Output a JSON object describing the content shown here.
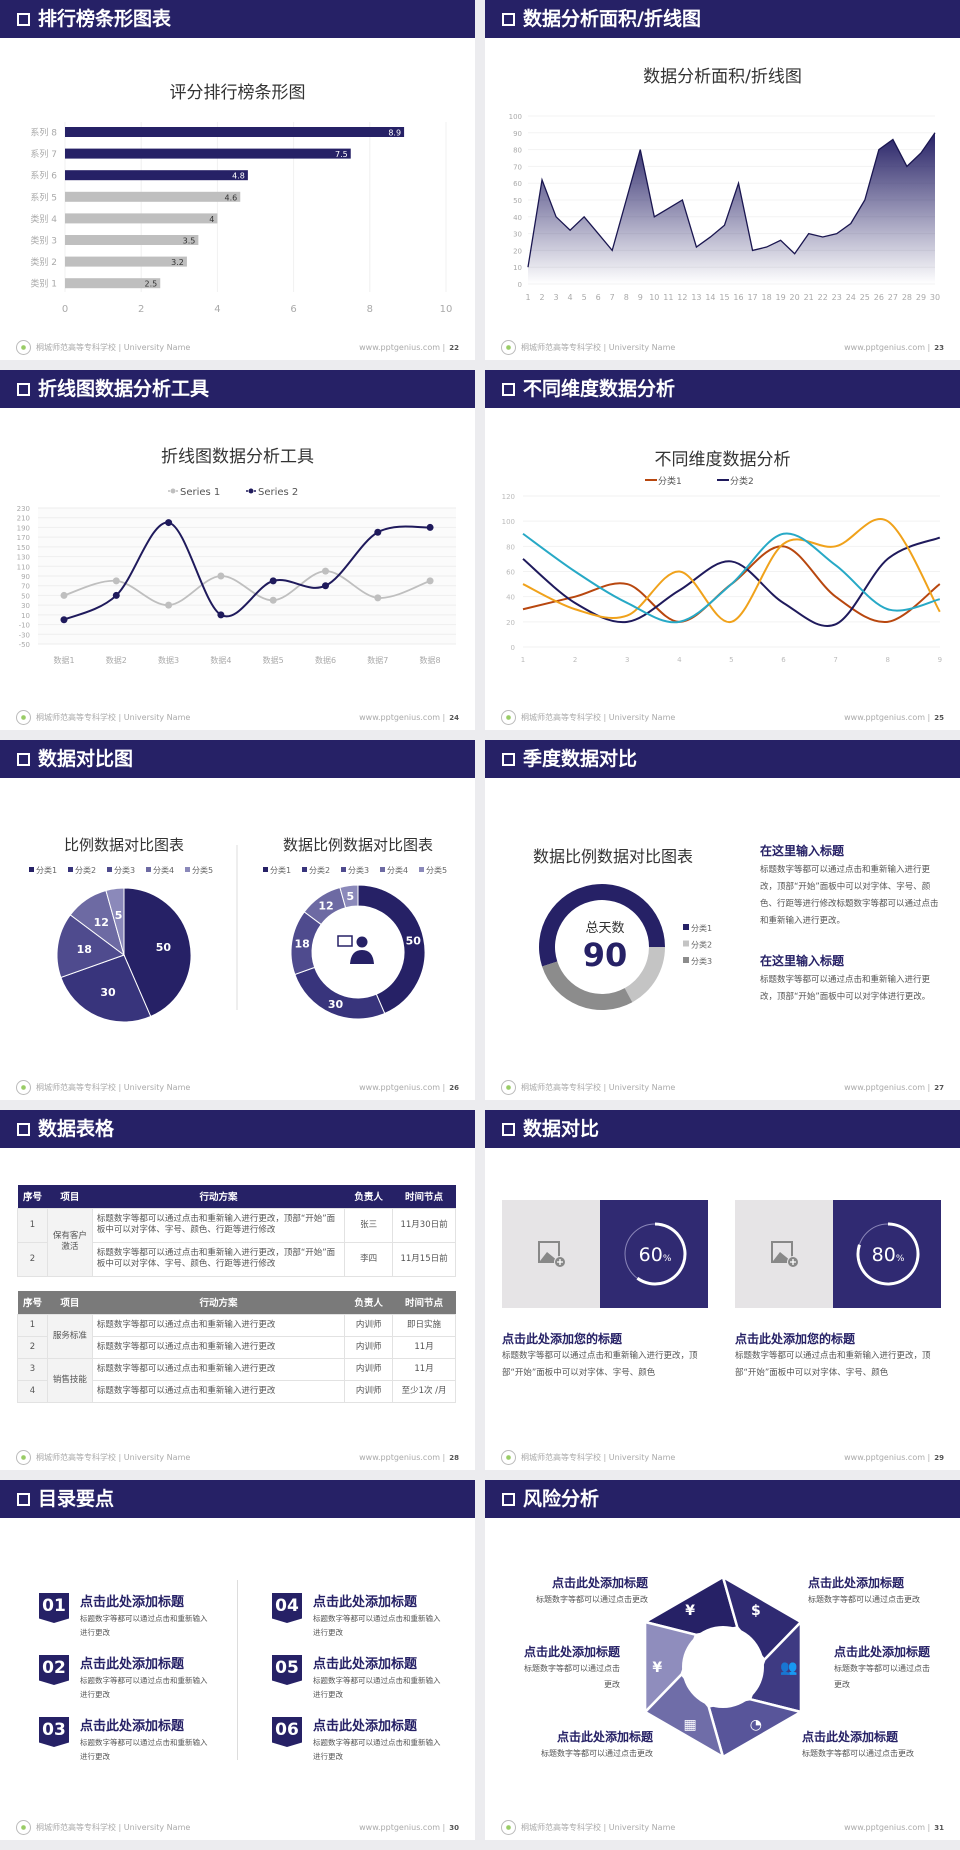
{
  "footer": {
    "school": "桐城师范高等专科学校 | University Name",
    "site": "www.pptgenius.com  |"
  },
  "colors": {
    "navy": "#262166",
    "gray": "#bfbfbf",
    "orange_red": "#b8470f",
    "orange": "#f0a21b",
    "teal": "#27a9c6"
  },
  "s1": {
    "header": "排行榜条形图表",
    "page": "22",
    "chart_data": {
      "type": "bar",
      "orientation": "horizontal",
      "title": "评分排行榜条形图",
      "categories": [
        "系列 8",
        "系列 7",
        "系列 6",
        "系列 5",
        "类别 4",
        "类别 3",
        "类别 2",
        "类别 1"
      ],
      "values": [
        8.9,
        7.5,
        4.8,
        4.6,
        4,
        3.5,
        3.2,
        2.5
      ],
      "highlight": [
        true,
        true,
        true,
        false,
        false,
        false,
        false,
        false
      ],
      "xlim": [
        0,
        10
      ],
      "xticks": [
        0,
        2,
        4,
        6,
        8,
        10
      ]
    }
  },
  "s2": {
    "header": "数据分析面积/折线图",
    "page": "23",
    "chart_data": {
      "type": "area",
      "title": "数据分析面积/折线图",
      "x": [
        1,
        2,
        3,
        4,
        5,
        6,
        7,
        8,
        9,
        10,
        11,
        12,
        13,
        14,
        15,
        16,
        17,
        18,
        19,
        20,
        21,
        22,
        23,
        24,
        25,
        26,
        27,
        28,
        29,
        30
      ],
      "values": [
        10,
        62,
        40,
        32,
        40,
        30,
        20,
        50,
        80,
        40,
        45,
        50,
        22,
        28,
        35,
        60,
        20,
        22,
        26,
        18,
        30,
        28,
        30,
        36,
        50,
        80,
        86,
        70,
        78,
        90
      ],
      "ylim": [
        0,
        100
      ],
      "yticks": [
        0,
        10,
        20,
        30,
        40,
        50,
        60,
        70,
        80,
        90,
        100
      ]
    }
  },
  "s3": {
    "header": "折线图数据分析工具",
    "page": "24",
    "chart_data": {
      "type": "line",
      "smooth": true,
      "title": "折线图数据分析工具",
      "categories": [
        "数据1",
        "数据2",
        "数据3",
        "数据4",
        "数据5",
        "数据6",
        "数据7",
        "数据8"
      ],
      "series": [
        {
          "name": "Series 1",
          "color": "#bfbfbf",
          "values": [
            50,
            80,
            30,
            90,
            40,
            100,
            45,
            80
          ]
        },
        {
          "name": "Series 2",
          "color": "#1f1a5c",
          "values": [
            0,
            50,
            200,
            10,
            80,
            70,
            180,
            190
          ]
        }
      ],
      "ylim": [
        -50,
        230
      ],
      "yticks": [
        -50,
        -30,
        -10,
        10,
        30,
        50,
        70,
        90,
        110,
        130,
        150,
        170,
        190,
        210,
        230
      ],
      "legend": "top"
    }
  },
  "s4": {
    "header": "不同维度数据分析",
    "page": "25",
    "chart_data": {
      "type": "line",
      "smooth": true,
      "title": "不同维度数据分析",
      "x": [
        1,
        2,
        3,
        4,
        5,
        6,
        7,
        8,
        9
      ],
      "series": [
        {
          "name": "分类1",
          "color": "#b8470f",
          "values": [
            30,
            40,
            50,
            20,
            50,
            80,
            40,
            20,
            50
          ]
        },
        {
          "name": "分类2",
          "color": "#1f1a5c",
          "values": [
            70,
            35,
            20,
            45,
            68,
            35,
            18,
            70,
            87
          ]
        },
        {
          "color": "#f0a21b",
          "values": [
            50,
            30,
            25,
            60,
            20,
            82,
            80,
            100,
            28
          ]
        },
        {
          "color": "#27a9c6",
          "values": [
            90,
            60,
            35,
            20,
            50,
            90,
            65,
            30,
            38
          ]
        }
      ],
      "ylim": [
        0,
        120
      ],
      "yticks": [
        0,
        20,
        40,
        60,
        80,
        100,
        120
      ],
      "legend": "top"
    }
  },
  "s5": {
    "header": "数据对比图",
    "page": "26",
    "chart_data": [
      {
        "type": "pie",
        "title": "比例数据对比图表",
        "categories": [
          "分类1",
          "分类2",
          "分类3",
          "分类4",
          "分类5"
        ],
        "values": [
          50,
          30,
          18,
          12,
          5
        ]
      },
      {
        "type": "donut",
        "title": "数据比例数据对比图表",
        "categories": [
          "分类1",
          "分类2",
          "分类3",
          "分类4",
          "分类5"
        ],
        "values": [
          50,
          30,
          18,
          12,
          5
        ],
        "center_icon": "presenter-icon"
      }
    ],
    "slice_colors": [
      "#262166",
      "#38347c",
      "#4f4b8e",
      "#6d6aa3",
      "#8b89ba"
    ]
  },
  "s6": {
    "header": "季度数据对比",
    "page": "27",
    "chart_data": {
      "type": "donut",
      "title": "数据比例数据对比图表",
      "categories": [
        "分类1",
        "分类2",
        "分类3"
      ],
      "values": [
        55,
        17,
        28
      ],
      "colors": [
        "#262166",
        "#c4c4c4",
        "#8c8c8c"
      ],
      "center_label": "总天数",
      "center_value": "90"
    },
    "items": [
      {
        "title": "在这里输入标题",
        "text": "标题数字等都可以通过点击和重新输入进行更改，顶部“开始”面板中可以对字体、字号、颜色、行距等进行修改标题数字等都可以通过点击和重新输入进行更改。"
      },
      {
        "title": "在这里输入标题",
        "text": "标题数字等都可以通过点击和重新输入进行更改，顶部“开始”面板中可以对字体进行更改。"
      }
    ]
  },
  "s7": {
    "header": "数据表格",
    "page": "28",
    "columns": [
      "序号",
      "项目",
      "行动方案",
      "负责人",
      "时间节点"
    ],
    "table1": {
      "group": "保有客户激活",
      "rows": [
        [
          "1",
          "标题数字等都可以通过点击和重新输入进行更改，顶部“开始”面板中可以对字体、字号、颜色、行距等进行修改",
          "张三",
          "11月30日前"
        ],
        [
          "2",
          "标题数字等都可以通过点击和重新输入进行更改，顶部“开始”面板中可以对字体、字号、颜色、行距等进行修改",
          "李四",
          "11月15日前"
        ]
      ]
    },
    "table2": {
      "groups": [
        "服务标准",
        "销售技能"
      ],
      "rows": [
        [
          "1",
          "标题数字等都可以通过点击和重新输入进行更改",
          "内训师",
          "即日实施"
        ],
        [
          "2",
          "标题数字等都可以通过点击和重新输入进行更改",
          "内训师",
          "11月"
        ],
        [
          "3",
          "标题数字等都可以通过点击和重新输入进行更改",
          "内训师",
          "11月"
        ],
        [
          "4",
          "标题数字等都可以通过点击和重新输入进行更改",
          "内训师",
          "至少1次 /月"
        ]
      ]
    }
  },
  "s8": {
    "header": "数据对比",
    "page": "29",
    "cards": [
      {
        "value": 60,
        "pct": "%",
        "title": "点击此处添加您的标题",
        "text": "标题数字等都可以通过点击和重新输入进行更改，顶部“开始”面板中可以对字体、字号、颜色",
        "icon": "add-image-icon"
      },
      {
        "value": 80,
        "pct": "%",
        "title": "点击此处添加您的标题",
        "text": "标题数字等都可以通过点击和重新输入进行更改，顶部“开始”面板中可以对字体、字号、颜色",
        "icon": "add-image-icon"
      }
    ]
  },
  "s9": {
    "header": "目录要点",
    "page": "30",
    "items": [
      {
        "num": "01",
        "title": "点击此处添加标题",
        "text": "标题数字等都可以通过点击和重新输入进行更改"
      },
      {
        "num": "02",
        "title": "点击此处添加标题",
        "text": "标题数字等都可以通过点击和重新输入进行更改"
      },
      {
        "num": "03",
        "title": "点击此处添加标题",
        "text": "标题数字等都可以通过点击和重新输入进行更改"
      },
      {
        "num": "04",
        "title": "点击此处添加标题",
        "text": "标题数字等都可以通过点击和重新输入进行更改"
      },
      {
        "num": "05",
        "title": "点击此处添加标题",
        "text": "标题数字等都可以通过点击和重新输入进行更改"
      },
      {
        "num": "06",
        "title": "点击此处添加标题",
        "text": "标题数字等都可以通过点击和重新输入进行更改"
      }
    ]
  },
  "s10": {
    "header": "风险分析",
    "page": "31",
    "items": [
      {
        "title": "点击此处添加标题",
        "text": "标题数字等都可以通过点击更改",
        "icon": "money-bag-icon"
      },
      {
        "title": "点击此处添加标题",
        "text": "标题数字等都可以通过点击更改",
        "icon": "coins-icon"
      },
      {
        "title": "点击此处添加标题",
        "text": "标题数字等都可以通过点击更改",
        "icon": "users-icon"
      },
      {
        "title": "点击此处添加标题",
        "text": "标题数字等都可以通过点击更改",
        "icon": "pie-chart-icon"
      },
      {
        "title": "点击此处添加标题",
        "text": "标题数字等都可以通过点击更改",
        "icon": "buildings-icon"
      },
      {
        "title": "点击此处添加标题",
        "text": "标题数字等都可以通过点击更改",
        "icon": "yen-hand-icon"
      }
    ]
  }
}
